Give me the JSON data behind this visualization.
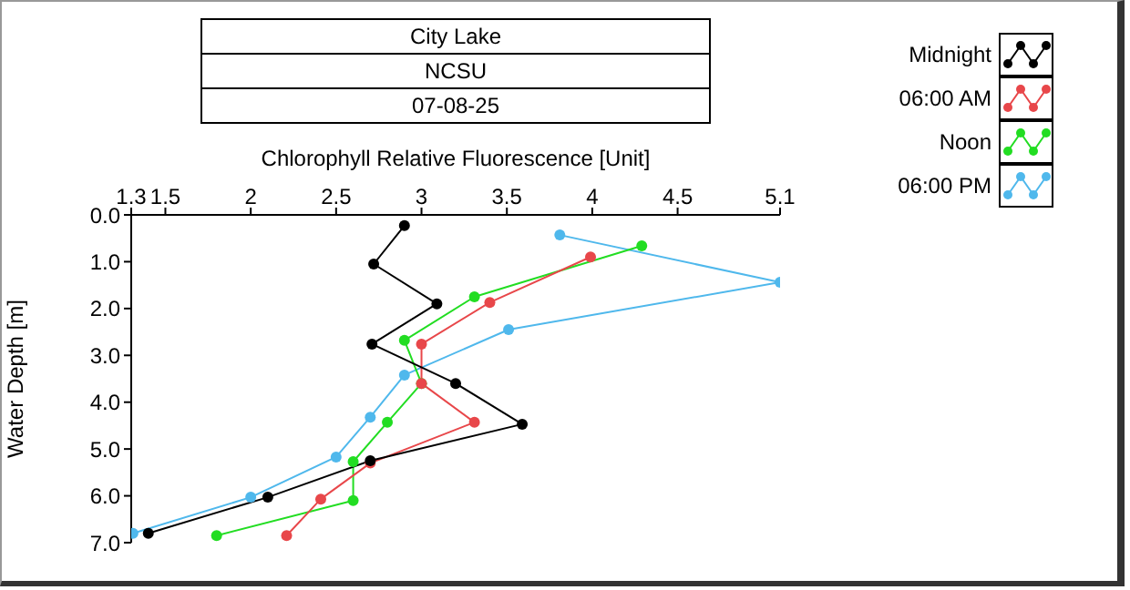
{
  "chart_data": {
    "type": "line",
    "title": "City Lake",
    "subtitle": "NCSU",
    "annotations": [
      "07-08-25"
    ],
    "xlabel": "Chlorophyll Relative Fluorescence [Unit]",
    "ylabel": "Water Depth [m]",
    "xlim": [
      1.3,
      5.1
    ],
    "xticks": [
      1.3,
      1.5,
      2,
      2.5,
      3,
      3.5,
      4,
      4.5,
      5.1
    ],
    "ylim": [
      7,
      0
    ],
    "yticks": [
      {
        "value": 0,
        "label": "0.0"
      },
      {
        "value": 1,
        "label": "1.0"
      },
      {
        "value": 2,
        "label": "2.0"
      },
      {
        "value": 3,
        "label": "3.0"
      },
      {
        "value": 4,
        "label": "4.0"
      },
      {
        "value": 5,
        "label": "5.0"
      },
      {
        "value": 6,
        "label": "6.0"
      },
      {
        "value": 7,
        "label": "7.0"
      }
    ],
    "grid": false,
    "legend": "top right",
    "marker": "circle",
    "line_style": "solid",
    "series": [
      {
        "name": "Midnight",
        "color": "#000000",
        "x": [
          2.9,
          2.72,
          3.09,
          2.71,
          3.2,
          3.59,
          2.7,
          2.1,
          1.4
        ],
        "values": [
          0.23,
          1.05,
          1.9,
          2.76,
          3.6,
          4.47,
          5.25,
          6.03,
          6.8
        ]
      },
      {
        "name": "06:00 AM",
        "color": "#e8474a",
        "x": [
          3.99,
          3.4,
          3.0,
          3.0,
          3.31,
          2.7,
          2.41,
          2.21
        ],
        "values": [
          0.9,
          1.87,
          2.76,
          3.6,
          4.43,
          5.3,
          6.07,
          6.85
        ]
      },
      {
        "name": "Noon",
        "color": "#22dd22",
        "x": [
          4.29,
          3.31,
          2.9,
          3.0,
          2.8,
          2.6,
          2.6,
          1.8
        ],
        "values": [
          0.66,
          1.75,
          2.68,
          3.6,
          4.43,
          5.27,
          6.1,
          6.85
        ]
      },
      {
        "name": "06:00 PM",
        "color": "#4fb8ec",
        "x": [
          3.81,
          5.1,
          3.51,
          2.9,
          2.7,
          2.5,
          2.0,
          1.31
        ],
        "values": [
          0.43,
          1.44,
          2.45,
          3.42,
          4.32,
          5.17,
          6.03,
          6.8
        ]
      }
    ]
  }
}
